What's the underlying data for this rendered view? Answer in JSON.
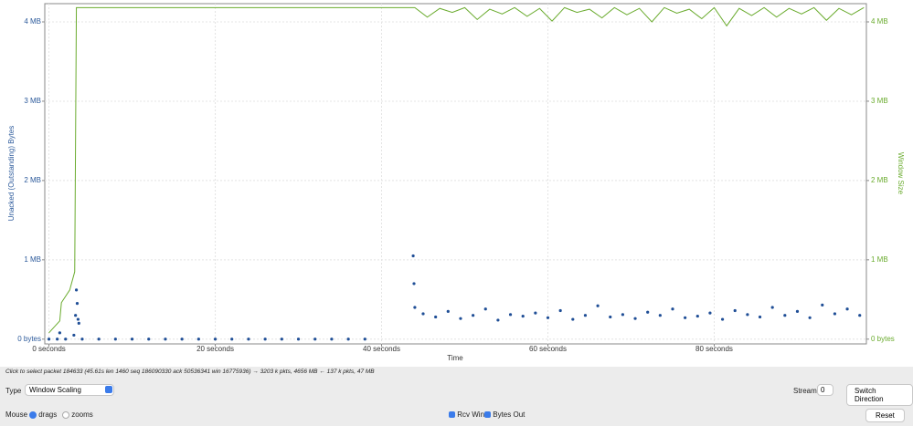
{
  "chart_data": {
    "type": "line",
    "x_label": "Time",
    "y_label": "Unacked (Outstanding) Bytes",
    "y2_label": "Window Size",
    "xlim": [
      -0.5,
      98.3
    ],
    "ylim": [
      -60000,
      4230000
    ],
    "y2lim": [
      -60000,
      4230000
    ],
    "grid": true,
    "xticks": [
      {
        "value": 0,
        "label": "0 seconds"
      },
      {
        "value": 20,
        "label": "20 seconds"
      },
      {
        "value": 40,
        "label": "40 seconds"
      },
      {
        "value": 60,
        "label": "60 seconds"
      },
      {
        "value": 80,
        "label": "80 seconds"
      }
    ],
    "yticks": [
      {
        "value": 0,
        "label": "0 bytes"
      },
      {
        "value": 1000000,
        "label": "1 MB"
      },
      {
        "value": 2000000,
        "label": "2 MB"
      },
      {
        "value": 3000000,
        "label": "3 MB"
      },
      {
        "value": 4000000,
        "label": "4 MB"
      }
    ],
    "y2ticks": [
      {
        "value": 0,
        "label": "0 bytes"
      },
      {
        "value": 1000000,
        "label": "1 MB"
      },
      {
        "value": 2000000,
        "label": "2 MB"
      },
      {
        "value": 3000000,
        "label": "3 MB"
      },
      {
        "value": 4000000,
        "label": "4 MB"
      }
    ],
    "series": [
      {
        "name": "Rcv Win",
        "type": "line",
        "axis": "y2",
        "color": "#6aab2e",
        "x": [
          0,
          1.3,
          1.5,
          2.5,
          3.1,
          3.3,
          43.8,
          44,
          45.5,
          47,
          48.5,
          50,
          51.5,
          53,
          54.5,
          56,
          57.5,
          59,
          60.5,
          62,
          63.5,
          65,
          66.5,
          68,
          69.5,
          71,
          72.5,
          74,
          75.5,
          77,
          78.5,
          80,
          81.5,
          83,
          84.5,
          86,
          87.5,
          89,
          90.5,
          92,
          93.5,
          95,
          96.5,
          98
        ],
        "values": [
          80000,
          230000,
          460000,
          620000,
          850000,
          4180000,
          4180000,
          4180000,
          4060000,
          4170000,
          4120000,
          4180000,
          4030000,
          4160000,
          4100000,
          4180000,
          4070000,
          4170000,
          4010000,
          4180000,
          4120000,
          4160000,
          4050000,
          4180000,
          4090000,
          4170000,
          4000000,
          4180000,
          4110000,
          4160000,
          4040000,
          4180000,
          3950000,
          4170000,
          4080000,
          4180000,
          4060000,
          4170000,
          4100000,
          4180000,
          4020000,
          4170000,
          4090000,
          4180000
        ]
      },
      {
        "name": "Bytes Out",
        "type": "scatter",
        "axis": "y",
        "color": "#1f4e96",
        "x": [
          0,
          1,
          1.3,
          2,
          3,
          3.2,
          3.3,
          3.4,
          3.5,
          3.6,
          4,
          6,
          8,
          10,
          12,
          14,
          16,
          18,
          20,
          22,
          24,
          26,
          28,
          30,
          32,
          34,
          36,
          38,
          43.8,
          43.9,
          44,
          45,
          46.5,
          48,
          49.5,
          51,
          52.5,
          54,
          55.5,
          57,
          58.5,
          60,
          61.5,
          63,
          64.5,
          66,
          67.5,
          69,
          70.5,
          72,
          73.5,
          75,
          76.5,
          78,
          79.5,
          81,
          82.5,
          84,
          85.5,
          87,
          88.5,
          90,
          91.5,
          93,
          94.5,
          96,
          97.5
        ],
        "values": [
          0,
          0,
          80000,
          0,
          50000,
          300000,
          620000,
          450000,
          250000,
          200000,
          0,
          0,
          0,
          0,
          0,
          0,
          0,
          0,
          0,
          0,
          0,
          0,
          0,
          0,
          0,
          0,
          0,
          0,
          1050000,
          700000,
          400000,
          320000,
          280000,
          350000,
          260000,
          300000,
          380000,
          240000,
          310000,
          290000,
          330000,
          270000,
          360000,
          250000,
          300000,
          420000,
          280000,
          310000,
          260000,
          340000,
          300000,
          380000,
          270000,
          290000,
          330000,
          250000,
          360000,
          310000,
          280000,
          400000,
          300000,
          350000,
          270000,
          430000,
          320000,
          380000,
          300000
        ]
      }
    ]
  },
  "status": "Click to select packet 184633 (45.61s len 1460 seq 186090330 ack 50536341 win 16775936) → 3203 k pkts, 4656 MB ← 137 k pkts, 47 MB",
  "controls": {
    "type_label": "Type",
    "type_value": "Window Scaling",
    "stream_label": "Stream",
    "stream_value": "0",
    "switch_button": "Switch Direction",
    "mouse_label": "Mouse",
    "mouse_drags": "drags",
    "mouse_zooms": "zooms",
    "reset_button": "Reset"
  }
}
